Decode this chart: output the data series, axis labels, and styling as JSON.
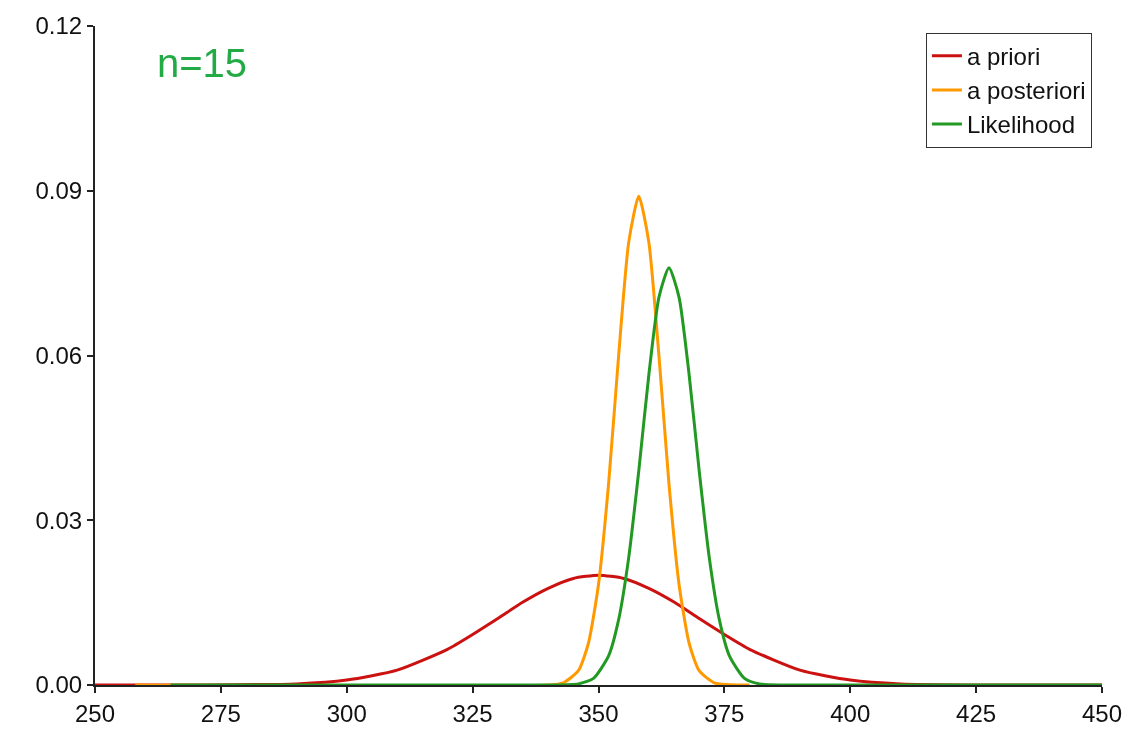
{
  "chart_data": {
    "type": "line",
    "xlim": [
      250,
      450
    ],
    "ylim": [
      0,
      0.12
    ],
    "xticks": [
      250,
      275,
      300,
      325,
      350,
      375,
      400,
      425,
      450
    ],
    "yticks": [
      {
        "value": 0,
        "label": "0.00"
      },
      {
        "value": 0.03,
        "label": "0.03"
      },
      {
        "value": 0.06,
        "label": "0.06"
      },
      {
        "value": 0.09,
        "label": "0.09"
      },
      {
        "value": 0.12,
        "label": "0.12"
      }
    ],
    "legend": "top right",
    "marker": "none",
    "line_style": "solid",
    "annotations": [
      "n=15"
    ],
    "series": [
      {
        "name": "a priori",
        "color": "#cc1111",
        "x": [
          250,
          270,
          290,
          300,
          310,
          320,
          325,
          330,
          335,
          340,
          345,
          350,
          355,
          360,
          365,
          370,
          375,
          380,
          390,
          400,
          410,
          430,
          450
        ],
        "values": [
          0,
          0,
          0.0002,
          0.0009,
          0.0027,
          0.0065,
          0.0092,
          0.0121,
          0.0151,
          0.0176,
          0.0194,
          0.02,
          0.0194,
          0.0176,
          0.0151,
          0.0121,
          0.0092,
          0.0065,
          0.0027,
          0.0009,
          0.0002,
          0,
          0
        ]
      },
      {
        "name": "a posteriori",
        "color": "#ff9900",
        "x": [
          258,
          340,
          343,
          346,
          348,
          350,
          352,
          354,
          356,
          358,
          360,
          362,
          364,
          366,
          368,
          370,
          373,
          380
        ],
        "values": [
          0,
          0,
          0.0004,
          0.0026,
          0.0076,
          0.0183,
          0.0366,
          0.06,
          0.0806,
          0.089,
          0.0806,
          0.06,
          0.0366,
          0.0183,
          0.0076,
          0.0026,
          0.0004,
          0
        ]
      },
      {
        "name": "Likelihood",
        "color": "#229922",
        "x": [
          265,
          340,
          346,
          349,
          352,
          354,
          356,
          358,
          360,
          362,
          364,
          366,
          368,
          370,
          372,
          374,
          376,
          379,
          382,
          400,
          450
        ],
        "values": [
          0,
          0,
          0.0002,
          0.0012,
          0.0053,
          0.0119,
          0.0232,
          0.039,
          0.0565,
          0.0706,
          0.076,
          0.0706,
          0.0565,
          0.039,
          0.0232,
          0.0119,
          0.0053,
          0.0012,
          0.0002,
          0,
          0
        ]
      }
    ]
  }
}
